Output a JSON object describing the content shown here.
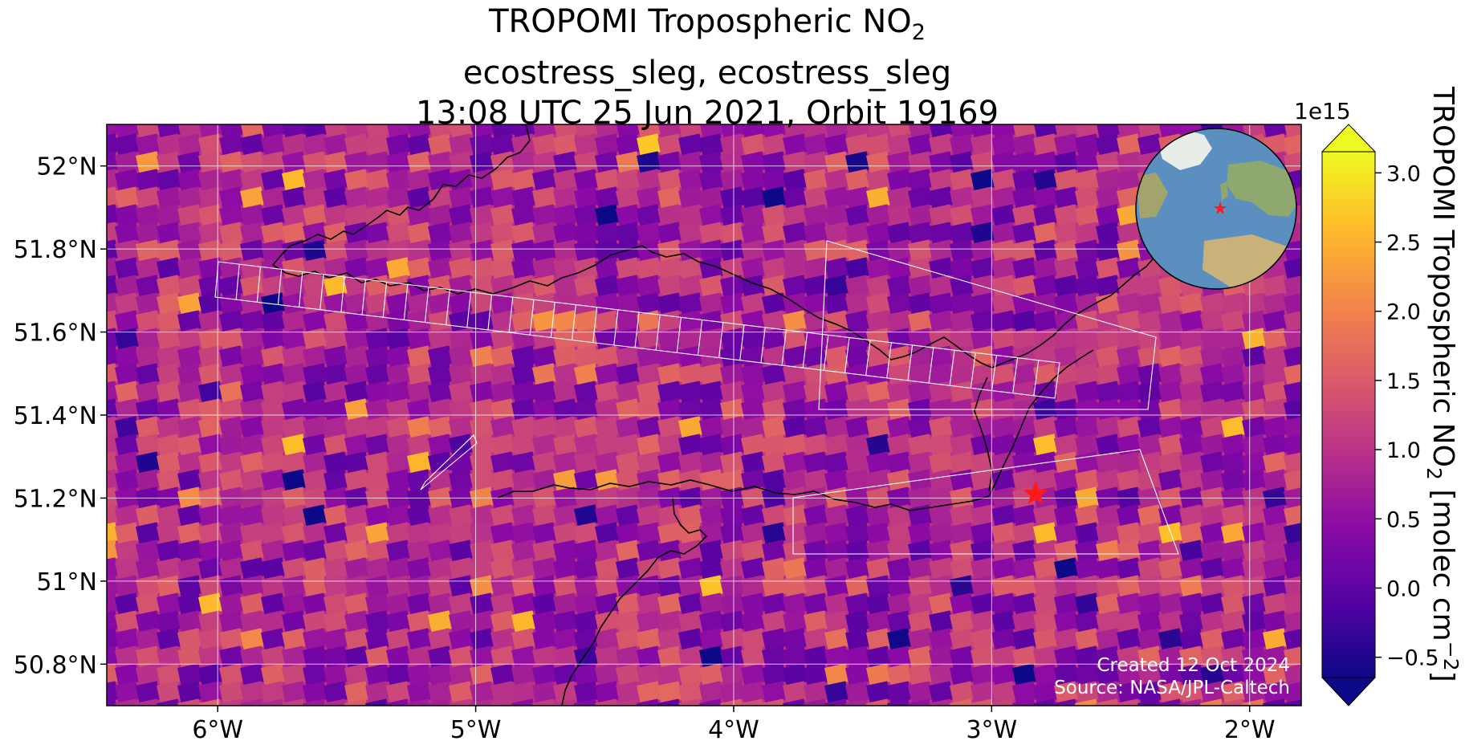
{
  "title": {
    "line1_prefix": "TROPOMI Tropospheric NO",
    "line1_subscript": "2",
    "line2": "ecostress_sleg, ecostress_sleg",
    "line3": "13:08 UTC 25 Jun 2021, Orbit 19169"
  },
  "map": {
    "lon_range": [
      -6.43,
      -1.8
    ],
    "lat_range": [
      50.7,
      52.1
    ],
    "x_ticks": [
      {
        "value": -6,
        "label": "6°W"
      },
      {
        "value": -5,
        "label": "5°W"
      },
      {
        "value": -4,
        "label": "4°W"
      },
      {
        "value": -3,
        "label": "3°W"
      },
      {
        "value": -2,
        "label": "2°W"
      }
    ],
    "y_ticks": [
      {
        "value": 52.0,
        "label": "52°N"
      },
      {
        "value": 51.8,
        "label": "51.8°N"
      },
      {
        "value": 51.6,
        "label": "51.6°N"
      },
      {
        "value": 51.4,
        "label": "51.4°N"
      },
      {
        "value": 51.2,
        "label": "51.2°N"
      },
      {
        "value": 51.0,
        "label": "51°N"
      },
      {
        "value": 50.8,
        "label": "50.8°N"
      }
    ],
    "grid": true,
    "target_marker": {
      "lon": -2.83,
      "lat": 51.21,
      "symbol": "red-star"
    },
    "locator_globe": {
      "position": "top-right",
      "marker": "red-star"
    }
  },
  "credits": {
    "created": "Created 12 Oct 2024",
    "source": "Source: NASA/JPL-Caltech"
  },
  "colorbar": {
    "label_prefix": "TROPOMI Tropospheric NO",
    "label_subscript": "2",
    "label_unit_prefix": " [molec cm",
    "label_unit_superscript": "−2",
    "label_unit_suffix": "]",
    "exponent": "1e15",
    "range": [
      -0.85,
      3.35
    ],
    "ticks": [
      {
        "value": 3.0,
        "label": "3.0"
      },
      {
        "value": 2.5,
        "label": "2.5"
      },
      {
        "value": 2.0,
        "label": "2.0"
      },
      {
        "value": 1.5,
        "label": "1.5"
      },
      {
        "value": 1.0,
        "label": "1.0"
      },
      {
        "value": 0.5,
        "label": "0.5"
      },
      {
        "value": 0.0,
        "label": "0.0"
      },
      {
        "value": -0.5,
        "label": "−0.5"
      }
    ],
    "extend": "both",
    "colormap": "plasma",
    "colormap_stops": [
      "#0d0887",
      "#5402a3",
      "#8b0aa5",
      "#b93289",
      "#db5c68",
      "#f48849",
      "#febc2a",
      "#f0f921"
    ]
  },
  "chart_data": {
    "type": "heatmap",
    "title": "TROPOMI Tropospheric NO2 / ecostress_sleg, ecostress_sleg / 13:08 UTC 25 Jun 2021, Orbit 19169",
    "xlabel": "",
    "ylabel": "",
    "xlim": [
      -6.43,
      -1.8
    ],
    "ylim": [
      50.7,
      52.1
    ],
    "value_unit": "molec cm-2 (x1e15)",
    "value_range": [
      -0.85,
      3.35
    ]
  }
}
